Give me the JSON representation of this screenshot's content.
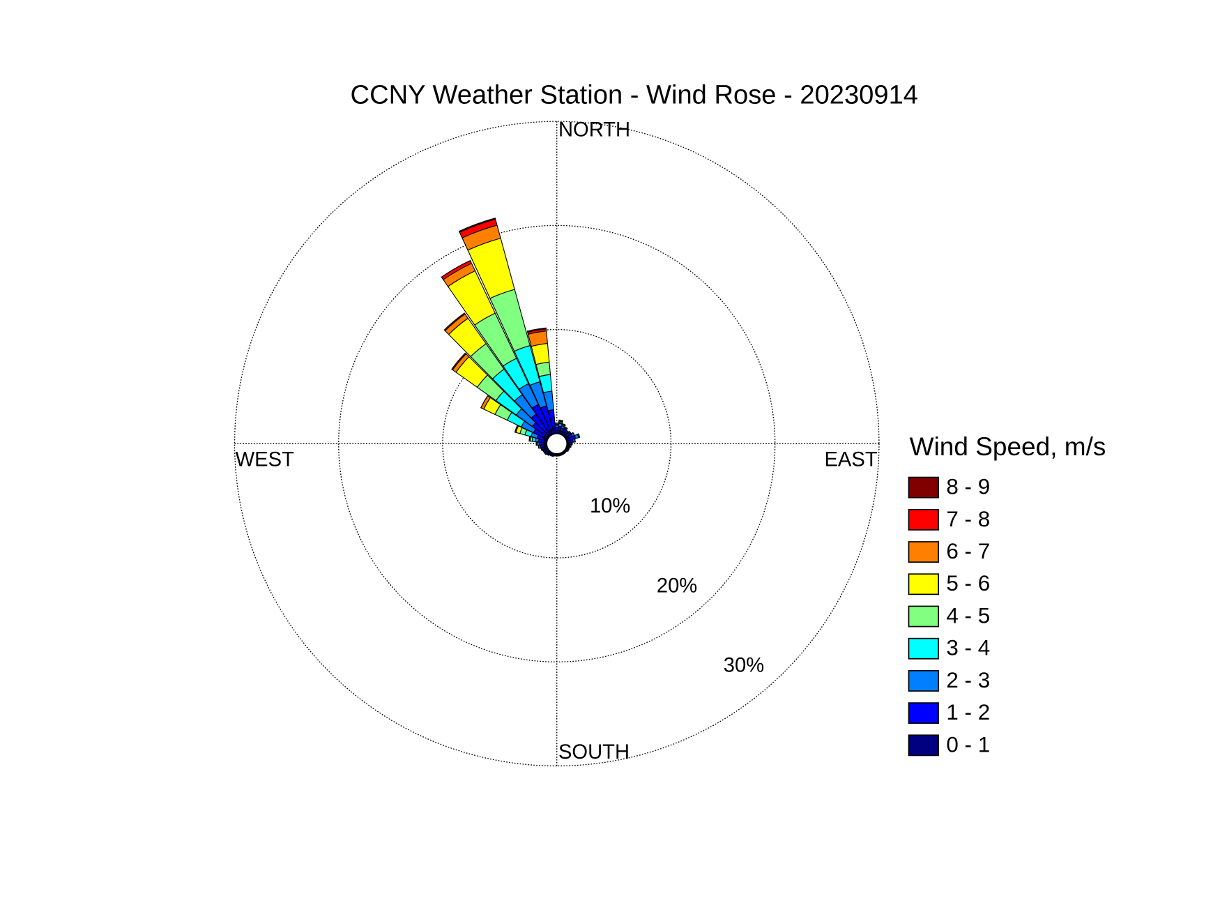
{
  "chart_data": {
    "type": "windrose",
    "title": "CCNY Weather Station - Wind Rose - 20230914",
    "direction_labels": [
      "NORTH",
      "EAST",
      "SOUTH",
      "WEST"
    ],
    "legend_title": "Wind Speed, m/s",
    "x": [
      0,
      10,
      20,
      30,
      40,
      50,
      60,
      70,
      80,
      90,
      100,
      110,
      120,
      130,
      140,
      150,
      160,
      170,
      180,
      190,
      200,
      210,
      220,
      230,
      240,
      250,
      260,
      270,
      280,
      290,
      300,
      310,
      320,
      330,
      340,
      350
    ],
    "rlim": [
      0,
      30
    ],
    "rticks": [
      {
        "value": 10,
        "label": "10%"
      },
      {
        "value": 20,
        "label": "20%"
      },
      {
        "value": 30,
        "label": "30%"
      }
    ],
    "grid": true,
    "series": [
      {
        "name": "0 - 1",
        "color": "#000080",
        "values": [
          0.3,
          0.3,
          0.3,
          0.3,
          0.2,
          0.2,
          0.3,
          0.3,
          0.3,
          0.2,
          0.2,
          0.2,
          0.2,
          0.1,
          0.1,
          0.1,
          0.1,
          0.1,
          0.1,
          0.1,
          0.2,
          0.2,
          0.2,
          0.2,
          0.2,
          0.3,
          0.3,
          0.3,
          0.3,
          0.3,
          0.4,
          0.4,
          0.5,
          0.5,
          0.5,
          0.6
        ]
      },
      {
        "name": "1 - 2",
        "color": "#0000ff",
        "values": [
          0.3,
          0.4,
          0.3,
          0.3,
          0.2,
          0.3,
          0.4,
          0.6,
          0.3,
          0.2,
          0.1,
          0.1,
          0.1,
          0.1,
          0.1,
          0.1,
          0.1,
          0.1,
          0.1,
          0.1,
          0.1,
          0.1,
          0.1,
          0.2,
          0.2,
          0.2,
          0.3,
          0.4,
          0.5,
          0.7,
          1.1,
          1.5,
          2.0,
          2.7,
          2.3,
          1.7
        ]
      },
      {
        "name": "2 - 3",
        "color": "#0080ff",
        "values": [
          0.2,
          0.3,
          0.2,
          0.1,
          0.1,
          0.1,
          0.2,
          0.3,
          0.2,
          0.1,
          0.1,
          0,
          0,
          0,
          0,
          0,
          0,
          0,
          0,
          0,
          0,
          0,
          0.1,
          0.1,
          0.1,
          0.1,
          0.2,
          0.2,
          0.3,
          0.6,
          1.3,
          1.9,
          2.3,
          2.2,
          2.4,
          1.8
        ]
      },
      {
        "name": "3 - 4",
        "color": "#00ffff",
        "values": [
          0.1,
          0.1,
          0.1,
          0.1,
          0.1,
          0.1,
          0,
          0.1,
          0,
          0,
          0,
          0,
          0,
          0,
          0,
          0,
          0,
          0,
          0,
          0,
          0,
          0,
          0,
          0,
          0,
          0,
          0,
          0.1,
          0.3,
          0.6,
          1.5,
          2.4,
          3.0,
          2.7,
          3.6,
          1.6
        ]
      },
      {
        "name": "4 - 5",
        "color": "#80ff80",
        "values": [
          0.1,
          0.1,
          0.1,
          0,
          0,
          0,
          0,
          0,
          0,
          0,
          0,
          0,
          0,
          0,
          0,
          0,
          0,
          0,
          0,
          0,
          0,
          0,
          0,
          0,
          0,
          0,
          0,
          0,
          0.2,
          0.5,
          1.3,
          2.2,
          3.0,
          4.8,
          5.6,
          1.2
        ]
      },
      {
        "name": "5 - 6",
        "color": "#ffff00",
        "values": [
          0,
          0.1,
          0,
          0,
          0,
          0,
          0,
          0,
          0,
          0,
          0,
          0,
          0,
          0,
          0,
          0,
          0,
          0,
          0,
          0,
          0,
          0,
          0,
          0,
          0,
          0,
          0,
          0,
          0.1,
          0.4,
          1.2,
          2.5,
          3.0,
          4.5,
          5.1,
          1.8
        ]
      },
      {
        "name": "6 - 7",
        "color": "#ff8000",
        "values": [
          0,
          0,
          0,
          0,
          0,
          0,
          0,
          0,
          0,
          0,
          0,
          0,
          0,
          0,
          0,
          0,
          0,
          0,
          0,
          0,
          0,
          0,
          0,
          0,
          0,
          0,
          0,
          0,
          0,
          0.1,
          0.3,
          0.4,
          0.5,
          0.8,
          1.3,
          1.2
        ]
      },
      {
        "name": "7 - 8",
        "color": "#ff0000",
        "values": [
          0,
          0,
          0,
          0,
          0,
          0,
          0,
          0,
          0,
          0,
          0,
          0,
          0,
          0,
          0,
          0,
          0,
          0,
          0,
          0,
          0,
          0,
          0,
          0,
          0,
          0,
          0,
          0,
          0,
          0,
          0,
          0.1,
          0.1,
          0.3,
          0.6,
          0.2
        ]
      },
      {
        "name": "8 - 9",
        "color": "#800000",
        "values": [
          0,
          0,
          0,
          0,
          0,
          0,
          0,
          0,
          0,
          0,
          0,
          0,
          0,
          0,
          0,
          0,
          0,
          0,
          0,
          0,
          0,
          0,
          0,
          0,
          0,
          0,
          0,
          0,
          0,
          0,
          0,
          0,
          0,
          0,
          0.1,
          0.1
        ]
      }
    ]
  }
}
